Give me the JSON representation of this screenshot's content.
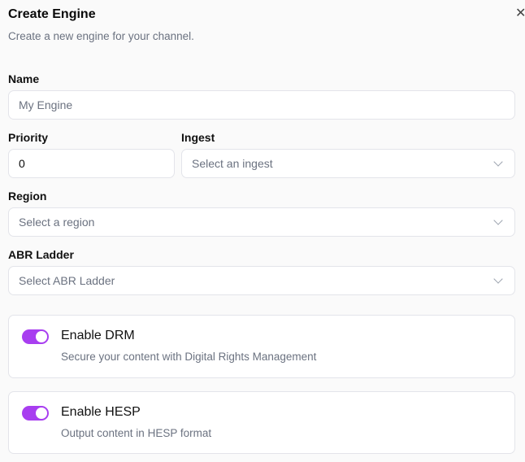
{
  "dialog": {
    "title": "Create Engine",
    "subtitle": "Create a new engine for your channel.",
    "close_icon": "close-icon"
  },
  "form": {
    "name": {
      "label": "Name",
      "placeholder": "My Engine",
      "value": ""
    },
    "priority": {
      "label": "Priority",
      "value": "0"
    },
    "ingest": {
      "label": "Ingest",
      "placeholder": "Select an ingest"
    },
    "region": {
      "label": "Region",
      "placeholder": "Select a region"
    },
    "abr": {
      "label": "ABR Ladder",
      "placeholder": "Select ABR Ladder"
    }
  },
  "toggles": [
    {
      "title": "Enable DRM",
      "description": "Secure your content with Digital Rights Management",
      "enabled": true
    },
    {
      "title": "Enable HESP",
      "description": "Output content in HESP format",
      "enabled": true
    }
  ],
  "colors": {
    "accent": "#a83ef0",
    "background": "#fafafa"
  }
}
